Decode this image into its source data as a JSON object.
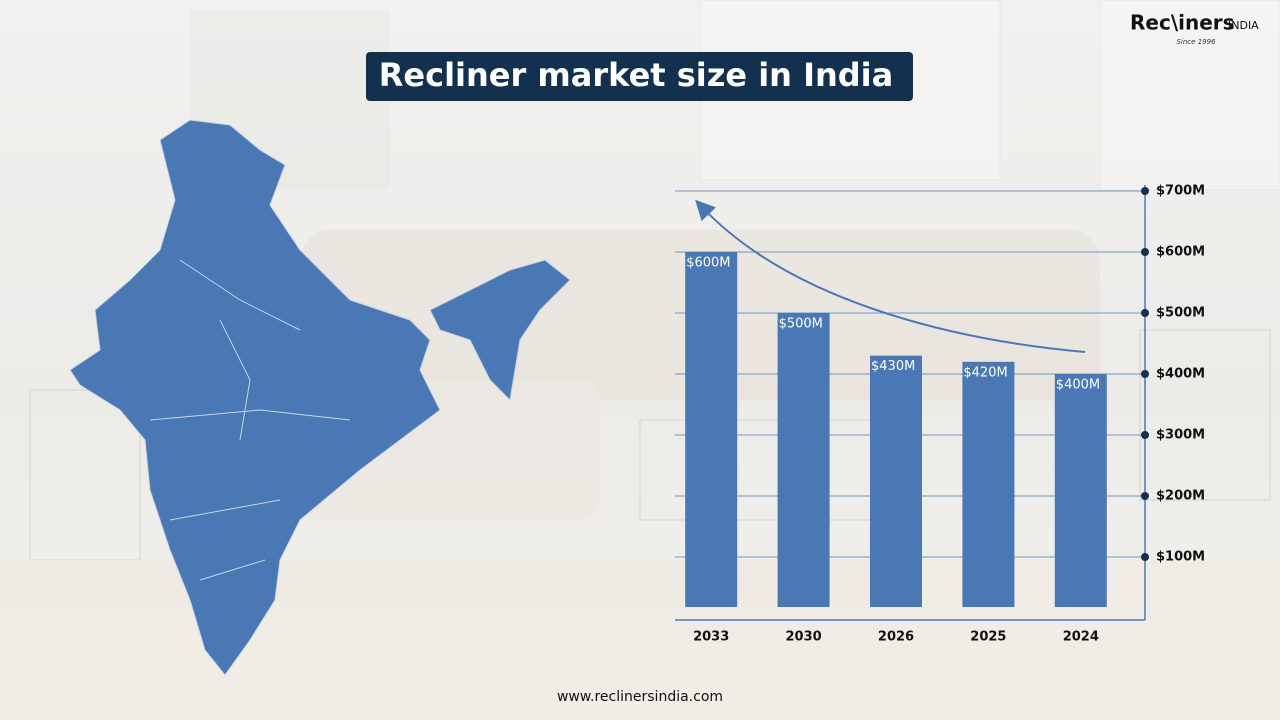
{
  "chart_data": {
    "type": "bar",
    "title": "Recliner market size in India",
    "categories": [
      "2033",
      "2030",
      "2026",
      "2025",
      "2024"
    ],
    "values": [
      600,
      500,
      430,
      420,
      400
    ],
    "value_labels": [
      "$600M",
      "$500M",
      "$430M",
      "$420M",
      "$400M"
    ],
    "color": "#4a78b5",
    "ylim": [
      0,
      700
    ],
    "yticks": [
      {
        "value": 100,
        "label": "$100M"
      },
      {
        "value": 200,
        "label": "$200M"
      },
      {
        "value": 300,
        "label": "$300M"
      },
      {
        "value": 400,
        "label": "$400M"
      },
      {
        "value": 500,
        "label": "$500M"
      },
      {
        "value": 600,
        "label": "$600M"
      },
      {
        "value": 700,
        "label": "$700M"
      }
    ],
    "grid": true
  },
  "brand": "Rec\\iners",
  "brand_suffix": "INDIA",
  "tagline": "Since 1996",
  "website": "www.reclinersindia.com"
}
